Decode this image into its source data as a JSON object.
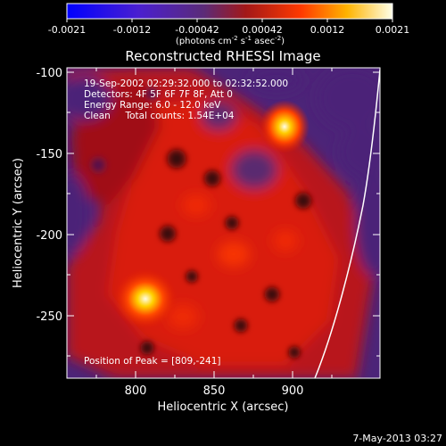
{
  "colorbar": {
    "ticks": [
      "-0.0021",
      "-0.0012",
      "-0.00042",
      "0.00042",
      "0.0012",
      "0.0021"
    ],
    "unit_label": "(photons cm",
    "unit_exp1": "-2",
    "unit_mid": " s",
    "unit_exp2": "-1",
    "unit_mid2": " asec",
    "unit_exp3": "-2",
    "unit_end": ")"
  },
  "image": {
    "title": "Reconstructed RHESSI Image",
    "time_range": "19-Sep-2002 02:29:32.000 to 02:32:52.000",
    "detectors": "Detectors: 4F 5F 6F 7F 8F, Att 0",
    "energy": "Energy Range: 6.0 - 12.0 keV",
    "clean": "Clean     Total counts: 1.54E+04",
    "peak": "Position of Peak = [809,-241]"
  },
  "axes": {
    "xlabel": "Heliocentric X (arcsec)",
    "ylabel": "Heliocentric Y (arcsec)",
    "xticks": [
      "800",
      "850",
      "900"
    ],
    "yticks": [
      "-100",
      "-150",
      "-200",
      "-250"
    ]
  },
  "footer": {
    "date": "7-May-2013 03:27"
  },
  "colors": {
    "background": "#000000",
    "limb": "#ffffff"
  }
}
